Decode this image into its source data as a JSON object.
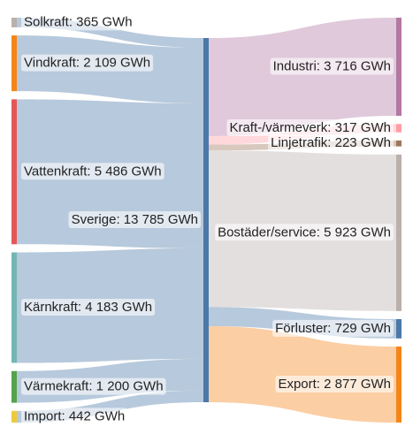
{
  "chart_data": {
    "type": "sankey",
    "nodes": [
      {
        "label": "Solkraft: 365 GWh",
        "value": 365,
        "color": "#bab0ac",
        "column": 0
      },
      {
        "label": "Vindkraft: 2 109 GWh",
        "value": 2109,
        "color": "#f58518",
        "column": 0
      },
      {
        "label": "Vattenkraft: 5 486 GWh",
        "value": 5486,
        "color": "#e45756",
        "column": 0
      },
      {
        "label": "Kärnkraft: 4 183 GWh",
        "value": 4183,
        "color": "#72b7b2",
        "column": 0
      },
      {
        "label": "Värmekraft: 1 200 GWh",
        "value": 1200,
        "color": "#54a24b",
        "column": 0
      },
      {
        "label": "Import: 442 GWh",
        "value": 442,
        "color": "#eeca3b",
        "column": 0
      },
      {
        "label": "Sverige: 13 785 GWh",
        "value": 13785,
        "color": "#4c78a8",
        "column": 1
      },
      {
        "label": "Industri: 3 716 GWh",
        "value": 3716,
        "color": "#b279a2",
        "column": 2
      },
      {
        "label": "Kraft-/värmeverk: 317 GWh",
        "value": 317,
        "color": "#ff9da6",
        "column": 2
      },
      {
        "label": "Linjetrafik: 223 GWh",
        "value": 223,
        "color": "#9d755d",
        "column": 2
      },
      {
        "label": "Bostäder/service: 5 923 GWh",
        "value": 5923,
        "color": "#bab0ac",
        "column": 2
      },
      {
        "label": "Förluster: 729 GWh",
        "value": 729,
        "color": "#4c78a8",
        "column": 2
      },
      {
        "label": "Export: 2 877 GWh",
        "value": 2877,
        "color": "#f58518",
        "column": 2
      }
    ],
    "links": [
      {
        "source": 0,
        "target": 6,
        "value": 365,
        "color": "#4c78a8"
      },
      {
        "source": 1,
        "target": 6,
        "value": 2109,
        "color": "#4c78a8"
      },
      {
        "source": 2,
        "target": 6,
        "value": 5486,
        "color": "#4c78a8"
      },
      {
        "source": 3,
        "target": 6,
        "value": 4183,
        "color": "#4c78a8"
      },
      {
        "source": 4,
        "target": 6,
        "value": 1200,
        "color": "#4c78a8"
      },
      {
        "source": 5,
        "target": 6,
        "value": 442,
        "color": "#4c78a8"
      },
      {
        "source": 6,
        "target": 7,
        "value": 3716,
        "color": "#b279a2"
      },
      {
        "source": 6,
        "target": 8,
        "value": 317,
        "color": "#ff9da6"
      },
      {
        "source": 6,
        "target": 9,
        "value": 223,
        "color": "#9d755d"
      },
      {
        "source": 6,
        "target": 10,
        "value": 5923,
        "color": "#bab0ac"
      },
      {
        "source": 6,
        "target": 11,
        "value": 729,
        "color": "#4c78a8"
      },
      {
        "source": 6,
        "target": 12,
        "value": 2877,
        "color": "#f58518"
      }
    ]
  }
}
